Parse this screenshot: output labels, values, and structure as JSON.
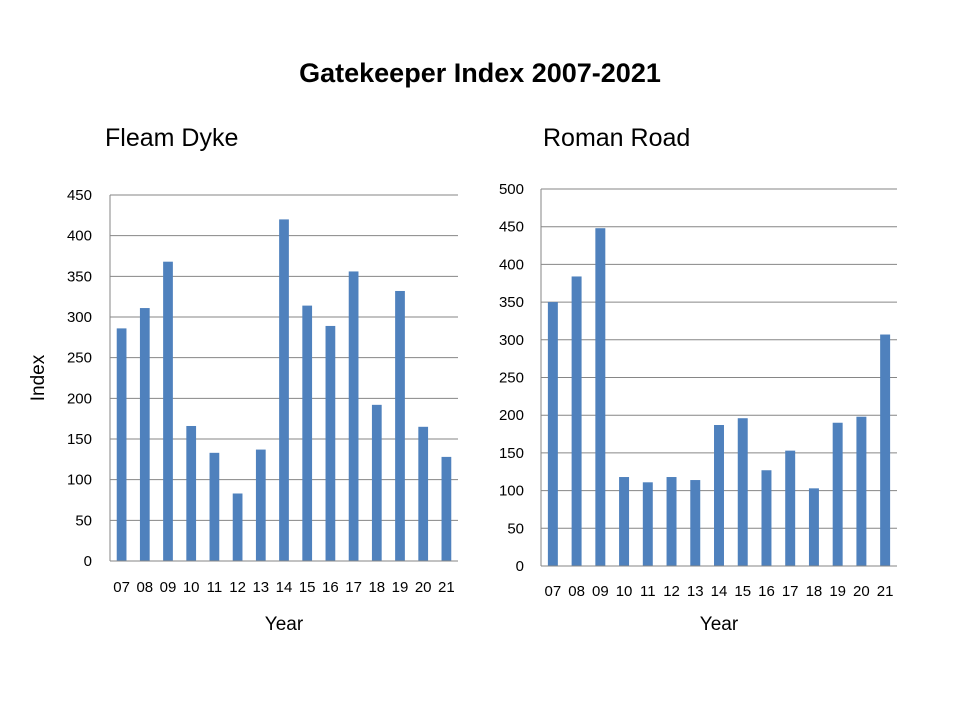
{
  "title": "Gatekeeper Index 2007-2021",
  "colors": {
    "bar": "#4f81bd",
    "grid": "#868686",
    "axis": "#868686"
  },
  "chart_data": [
    {
      "type": "bar",
      "title": "Fleam Dyke",
      "xlabel": "Year",
      "ylabel": "Index",
      "categories": [
        "07",
        "08",
        "09",
        "10",
        "11",
        "12",
        "13",
        "14",
        "15",
        "16",
        "17",
        "18",
        "19",
        "20",
        "21"
      ],
      "values": [
        286,
        311,
        368,
        166,
        133,
        83,
        137,
        420,
        314,
        289,
        356,
        192,
        332,
        165,
        128
      ],
      "ylim": [
        0,
        450
      ],
      "yticks": [
        "0",
        "50",
        "100",
        "150",
        "200",
        "250",
        "300",
        "350",
        "400",
        "450"
      ],
      "grid": true
    },
    {
      "type": "bar",
      "title": "Roman Road",
      "xlabel": "Year",
      "ylabel": "",
      "categories": [
        "07",
        "08",
        "09",
        "10",
        "11",
        "12",
        "13",
        "14",
        "15",
        "16",
        "17",
        "18",
        "19",
        "20",
        "21"
      ],
      "values": [
        350,
        384,
        448,
        118,
        111,
        118,
        114,
        187,
        196,
        127,
        153,
        103,
        190,
        198,
        307
      ],
      "ylim": [
        0,
        500
      ],
      "yticks": [
        "0",
        "50",
        "100",
        "150",
        "200",
        "250",
        "300",
        "350",
        "400",
        "450",
        "500"
      ],
      "grid": true
    }
  ]
}
